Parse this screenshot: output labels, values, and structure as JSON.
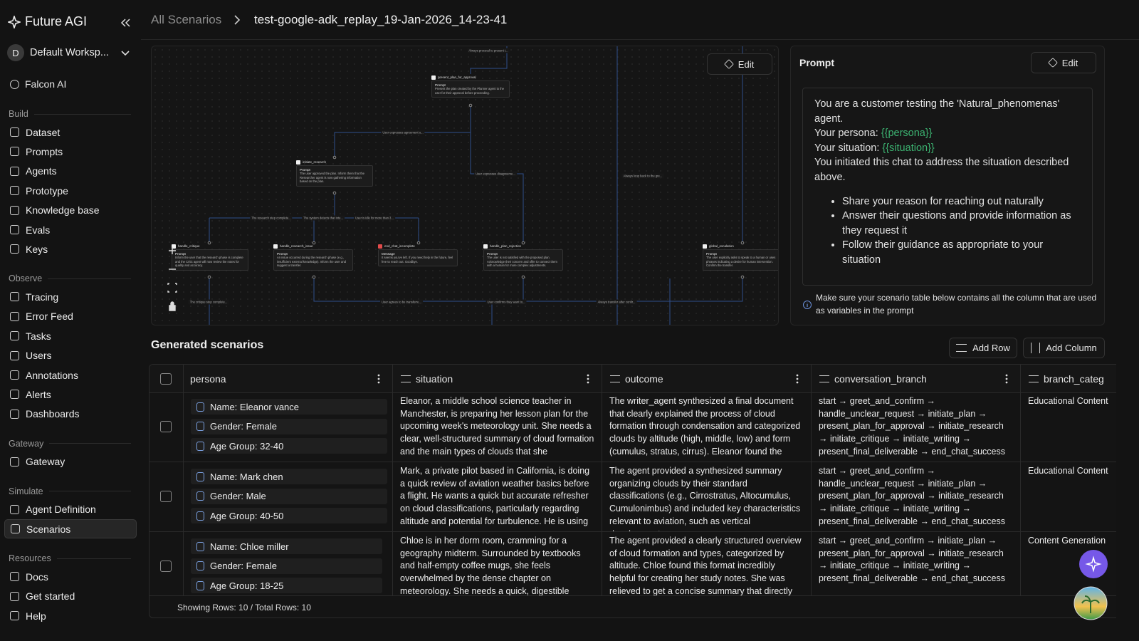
{
  "sidebar": {
    "brand": "Future AGI",
    "workspace_initial": "D",
    "workspace": "Default Worksp...",
    "falcon": "Falcon AI",
    "sections": [
      {
        "title": "Build",
        "items": [
          "Dataset",
          "Prompts",
          "Agents",
          "Prototype",
          "Knowledge base",
          "Evals",
          "Keys"
        ]
      },
      {
        "title": "Observe",
        "items": [
          "Tracing",
          "Error Feed",
          "Tasks",
          "Users",
          "Annotations",
          "Alerts",
          "Dashboards"
        ]
      },
      {
        "title": "Gateway",
        "items": [
          "Gateway"
        ]
      },
      {
        "title": "Simulate",
        "items": [
          "Agent Definition",
          "Scenarios"
        ]
      },
      {
        "title": "Resources",
        "items": [
          "Docs",
          "Get started",
          "Help"
        ]
      }
    ],
    "active": {
      "section": 3,
      "item": 1
    }
  },
  "header": {
    "breadcrumb": "All Scenarios",
    "title": "test-google-adk_replay_19-Jan-2026_14-23-41"
  },
  "flow": {
    "edit": "Edit",
    "nodes": [
      {
        "title": "present_plan_for_approval",
        "kind": "Prompt",
        "text": "Present the plan created by the Planner agent to the user for their approval before proceeding."
      },
      {
        "title": "initiate_research",
        "kind": "Prompt",
        "text": "The user approved the plan. Inform them that the Researcher agent is now gathering information based on the plan."
      },
      {
        "title": "handle_critique",
        "kind": "Prompt",
        "text": "Inform the user that the research phase is complete and the Critic agent will now review the notes for quality and accuracy."
      },
      {
        "title": "handle_research_issue",
        "kind": "Prompt",
        "text": "An issue occurred during the research phase (e.g., insufficient external knowledge). Inform the user and suggest a transfer."
      },
      {
        "title": "end_chat_incomplete",
        "kind": "Message",
        "text": "It seems you've left. If you need help in the future, feel free to reach out. Goodbye."
      },
      {
        "title": "handle_plan_rejection",
        "kind": "Prompt",
        "text": "The user is not satisfied with the proposed plan. Acknowledge their concern and offer to connect them with a human for more complex adjustments."
      },
      {
        "title": "global_escalation",
        "kind": "Prompt",
        "text": "The user explicitly asks to speak to a human or uses phrases indicating a desire for human intervention. Confirm the transfer."
      }
    ],
    "edge_labels": [
      "Always proceed to present t...",
      "User expresses agreement o...",
      "User expresses disagreeme...",
      "Always loop back to the gre...",
      "The research step complete...",
      "The system detects that inte...",
      "User is idle for more than 3...",
      "The critique step complete...",
      "User agrees to be transferre...",
      "User confirms they want to...",
      "Always transfer after confir..."
    ]
  },
  "prompt": {
    "title": "Prompt",
    "edit": "Edit",
    "intro": "You are a customer testing the 'Natural_phenomenas' agent.",
    "persona_label": "Your persona:",
    "persona_var": "{{persona}}",
    "situation_label": "Your situation:",
    "situation_var": "{{situation}}",
    "closing": "You initiated this chat to address the situation described above.",
    "bullets": [
      "Share your reason for reaching out naturally",
      "Answer their questions and provide information as they request it",
      "Follow their guidance as appropriate to your situation"
    ],
    "note": "Make sure your scenario table below contains all the column that are used as variables in the prompt"
  },
  "table": {
    "title": "Generated scenarios",
    "add_row": "Add Row",
    "add_column": "Add Column",
    "columns": [
      "persona",
      "situation",
      "outcome",
      "conversation_branch",
      "branch_categ"
    ],
    "rows": [
      {
        "persona": [
          "Name: Eleanor vance",
          "Gender: Female",
          "Age Group: 32-40"
        ],
        "cells": [
          "Eleanor, a middle school science teacher in Manchester, is preparing her lesson plan for the upcoming week's meteorology unit. She needs a clear, well-structured summary of cloud formation and the main types of clouds that she",
          "The writer_agent synthesized a final document that clearly explained the process of cloud formation through condensation and categorized clouds by altitude (high, middle, low) and form (cumulus, stratus, cirrus). Eleanor found the",
          "start → greet_and_confirm → handle_unclear_request → initiate_plan → present_plan_for_approval → initiate_research → initiate_critique → initiate_writing → present_final_deliverable → end_chat_success",
          "Educational Content"
        ]
      },
      {
        "persona": [
          "Name: Mark chen",
          "Gender: Male",
          "Age Group: 40-50"
        ],
        "cells": [
          "Mark, a private pilot based in California, is doing a quick review of aviation weather basics before a flight. He wants a quick but accurate refresher on cloud classifications, particularly regarding altitude and potential for turbulence. He is using",
          "The agent provided a synthesized summary organizing clouds by their standard classifications (e.g., Cirrostratus, Altocumulus, Cumulonimbus) and included key characteristics relevant to aviation, such as vertical development",
          "start → greet_and_confirm → handle_unclear_request → initiate_plan → present_plan_for_approval → initiate_research → initiate_critique → initiate_writing → present_final_deliverable → end_chat_success",
          "Educational Content"
        ]
      },
      {
        "persona": [
          "Name: Chloe miller",
          "Gender: Female",
          "Age Group: 18-25"
        ],
        "cells": [
          "Chloe is in her dorm room, cramming for a geography midterm. Surrounded by textbooks and half-empty coffee mugs, she feels overwhelmed by the dense chapter on meteorology. She needs a quick, digestible",
          "The agent provided a clearly structured overview of cloud formation and types, categorized by altitude. Chloe found this format incredibly helpful for creating her study notes. She was relieved to get a concise summary that directly",
          "start → greet_and_confirm → initiate_plan → present_plan_for_approval → initiate_research → initiate_critique → initiate_writing → present_final_deliverable → end_chat_success",
          "Content Generation"
        ]
      }
    ],
    "footer": "Showing Rows: 10 / Total Rows: 10"
  }
}
